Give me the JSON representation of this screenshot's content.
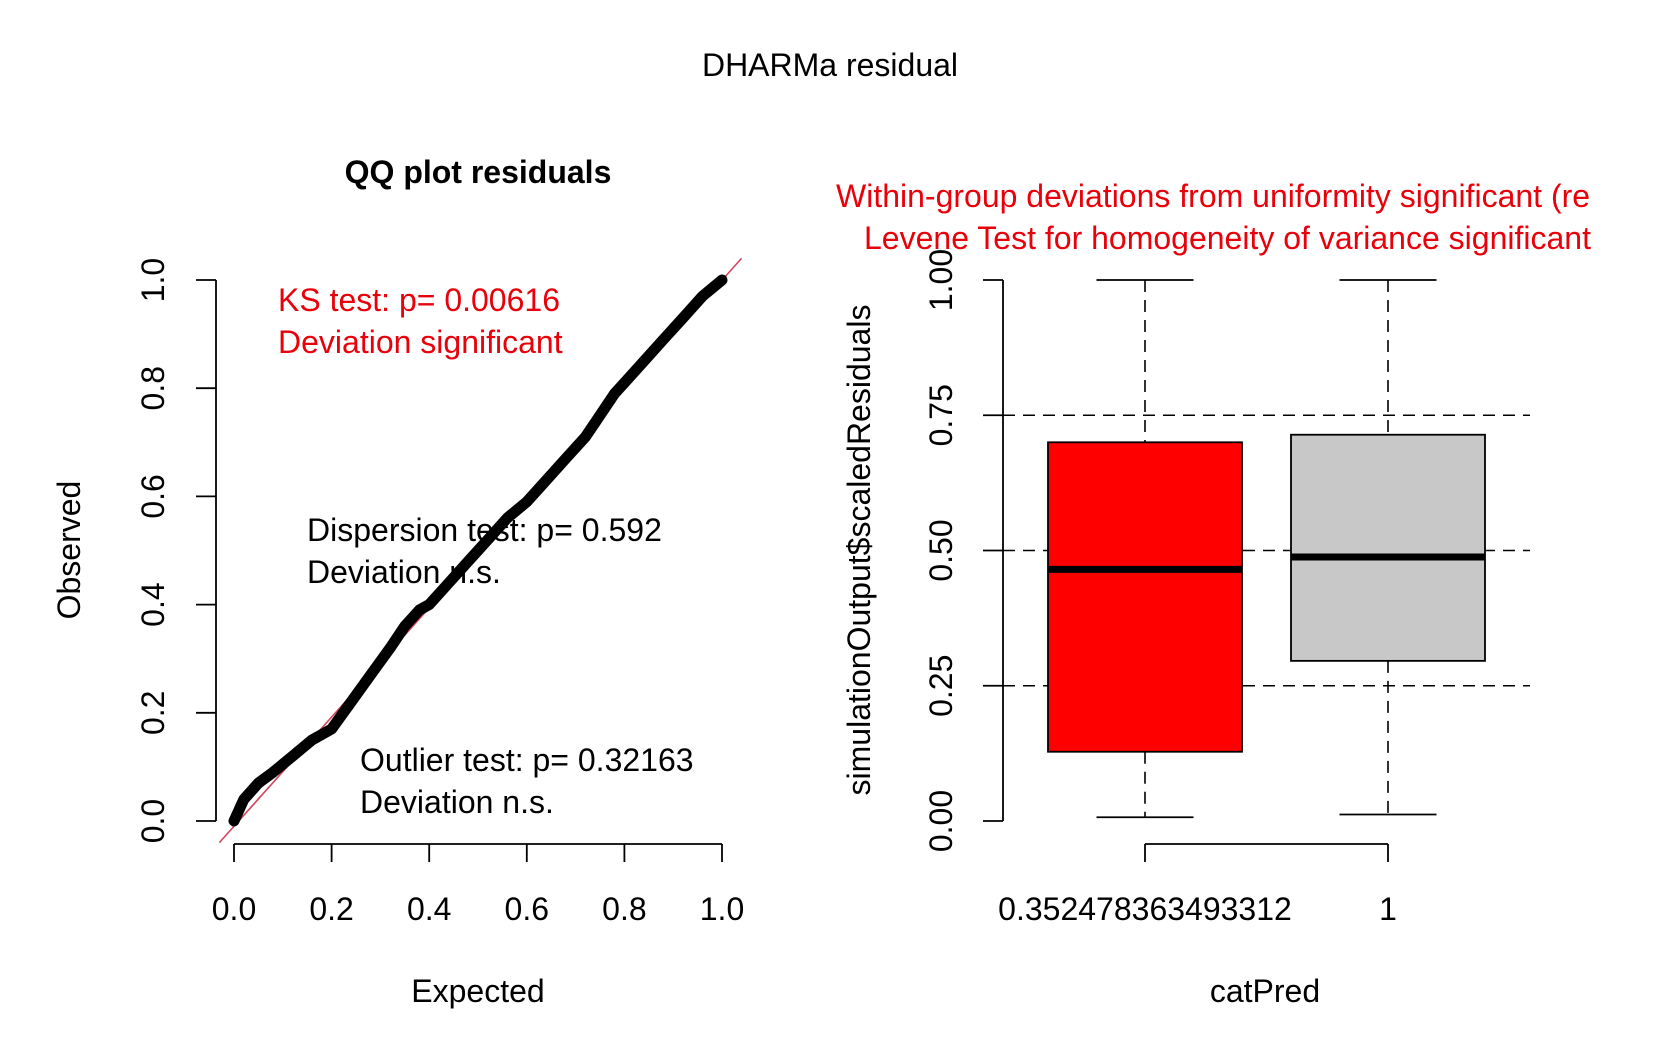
{
  "figure_title": "DHARMa residual",
  "colors": {
    "red_text": "#e8000b",
    "ref_line": "#d1475e",
    "box_red": "#ff0000",
    "box_grey": "#c8c8c8",
    "black": "#000000"
  },
  "chart_data": [
    {
      "type": "scatter",
      "title": "QQ plot residuals",
      "xlabel": "Expected",
      "ylabel": "Observed",
      "xlim": [
        0,
        1
      ],
      "ylim": [
        0,
        1
      ],
      "x_ticks": [
        "0.0",
        "0.2",
        "0.4",
        "0.6",
        "0.8",
        "1.0"
      ],
      "y_ticks": [
        "0.0",
        "0.2",
        "0.4",
        "0.6",
        "0.8",
        "1.0"
      ],
      "reference_line": "y = x",
      "points_x": [
        0.0,
        0.02,
        0.05,
        0.08,
        0.12,
        0.16,
        0.2,
        0.24,
        0.28,
        0.32,
        0.35,
        0.38,
        0.4,
        0.44,
        0.48,
        0.52,
        0.56,
        0.6,
        0.64,
        0.68,
        0.72,
        0.75,
        0.78,
        0.8,
        0.84,
        0.88,
        0.92,
        0.96,
        1.0
      ],
      "points_y": [
        0.0,
        0.04,
        0.07,
        0.09,
        0.12,
        0.15,
        0.17,
        0.22,
        0.27,
        0.32,
        0.36,
        0.39,
        0.4,
        0.44,
        0.48,
        0.52,
        0.56,
        0.59,
        0.63,
        0.67,
        0.71,
        0.75,
        0.79,
        0.81,
        0.85,
        0.89,
        0.93,
        0.97,
        1.0
      ],
      "annotations": {
        "ks_line1": "KS test: p= 0.00616",
        "ks_line2": "Deviation  significant",
        "dispersion_line1": "Dispersion test: p= 0.592",
        "dispersion_line2": "Deviation  n.s.",
        "outlier_line1": "Outlier test: p= 0.32163",
        "outlier_line2": "Deviation  n.s."
      }
    },
    {
      "type": "box",
      "title_line1": "Within-group deviations from uniformity significant (re",
      "title_line2": "Levene Test for homogeneity of variance significant",
      "xlabel": "catPred",
      "ylabel": "simulationOutput$scaledResiduals",
      "ylim": [
        0,
        1
      ],
      "y_ticks": [
        "0.00",
        "0.25",
        "0.50",
        "0.75",
        "1.00"
      ],
      "reference_lines": [
        0.25,
        0.5,
        0.75
      ],
      "categories": [
        "0.352478363493312",
        "1"
      ],
      "boxes": [
        {
          "min": 0.007,
          "q1": 0.128,
          "median": 0.465,
          "q3": 0.7,
          "max": 1.0,
          "color": "#ff0000"
        },
        {
          "min": 0.012,
          "q1": 0.296,
          "median": 0.488,
          "q3": 0.714,
          "max": 1.0,
          "color": "#c8c8c8"
        }
      ]
    }
  ]
}
